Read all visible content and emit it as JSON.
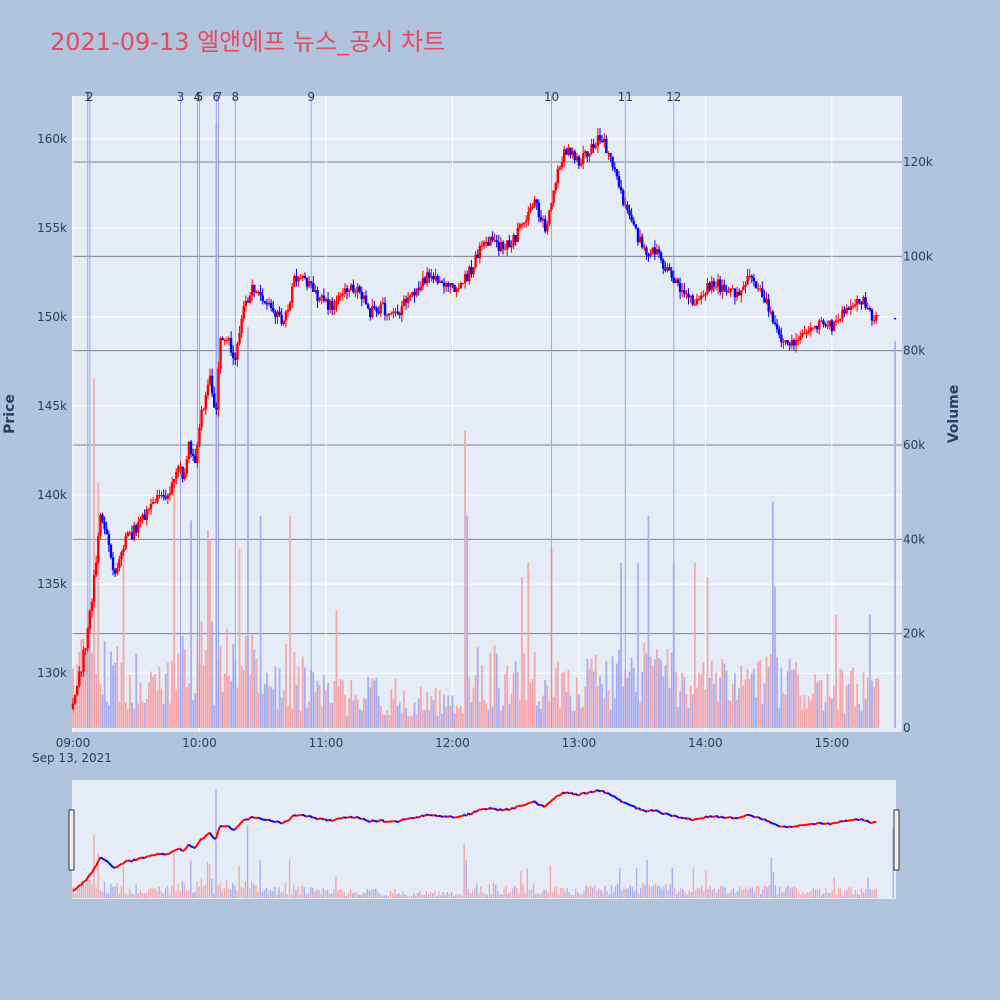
{
  "chart_data": {
    "type": "candlestick",
    "title": "2021-09-13 엘앤에프 뉴스_공시 차트",
    "date_label": "Sep 13, 2021",
    "yaxis_label": "Price",
    "y2axis_label": "Volume",
    "x_ticks": [
      "09:00",
      "10:00",
      "11:00",
      "12:00",
      "13:00",
      "14:00",
      "15:00"
    ],
    "y_ticks": [
      "130k",
      "135k",
      "140k",
      "145k",
      "150k",
      "155k",
      "160k"
    ],
    "y2_ticks": [
      "0",
      "20k",
      "40k",
      "60k",
      "80k",
      "100k",
      "120k"
    ],
    "y_range": [
      126700,
      162400
    ],
    "y2_range": [
      0,
      134000
    ],
    "x_range": [
      "09:00",
      "15:32"
    ],
    "grid": true,
    "legend": "none",
    "colors": {
      "up": "#ff0000",
      "down": "#0000ff",
      "up_volume": "#f4a8ac",
      "down_volume": "#a8aef4",
      "annotation_line": "#9aa6ee",
      "title": "#e64a5c"
    },
    "annotations": [
      {
        "label": "1",
        "time": "09:07"
      },
      {
        "label": "2",
        "time": "09:08"
      },
      {
        "label": "3",
        "time": "09:51"
      },
      {
        "label": "4",
        "time": "09:59"
      },
      {
        "label": "5",
        "time": "10:00"
      },
      {
        "label": "6",
        "time": "10:08"
      },
      {
        "label": "7",
        "time": "10:09"
      },
      {
        "label": "8",
        "time": "10:17"
      },
      {
        "label": "9",
        "time": "10:53"
      },
      {
        "label": "10",
        "time": "12:47"
      },
      {
        "label": "11",
        "time": "13:22"
      },
      {
        "label": "12",
        "time": "13:45"
      }
    ],
    "price_anchors": [
      [
        "09:00",
        128500
      ],
      [
        "09:03",
        129800
      ],
      [
        "09:05",
        131000
      ],
      [
        "09:08",
        133200
      ],
      [
        "09:11",
        136500
      ],
      [
        "09:13",
        139000
      ],
      [
        "09:16",
        137500
      ],
      [
        "09:20",
        135500
      ],
      [
        "09:25",
        137500
      ],
      [
        "09:31",
        138200
      ],
      [
        "09:37",
        139500
      ],
      [
        "09:45",
        140000
      ],
      [
        "09:50",
        141500
      ],
      [
        "09:53",
        141000
      ],
      [
        "09:55",
        143000
      ],
      [
        "09:58",
        141500
      ],
      [
        "10:01",
        144500
      ],
      [
        "10:05",
        146500
      ],
      [
        "10:08",
        144500
      ],
      [
        "10:10",
        149000
      ],
      [
        "10:14",
        148500
      ],
      [
        "10:17",
        147500
      ],
      [
        "10:20",
        150000
      ],
      [
        "10:25",
        151500
      ],
      [
        "10:30",
        151000
      ],
      [
        "10:35",
        150500
      ],
      [
        "10:40",
        149500
      ],
      [
        "10:45",
        152000
      ],
      [
        "10:52",
        152000
      ],
      [
        "10:57",
        151000
      ],
      [
        "11:03",
        150500
      ],
      [
        "11:10",
        151500
      ],
      [
        "11:16",
        151500
      ],
      [
        "11:20",
        150300
      ],
      [
        "11:27",
        150500
      ],
      [
        "11:32",
        150000
      ],
      [
        "11:38",
        150800
      ],
      [
        "11:45",
        151800
      ],
      [
        "11:50",
        152500
      ],
      [
        "11:55",
        152000
      ],
      [
        "12:00",
        151500
      ],
      [
        "12:04",
        151800
      ],
      [
        "12:08",
        152500
      ],
      [
        "12:12",
        153500
      ],
      [
        "12:17",
        154200
      ],
      [
        "12:22",
        153800
      ],
      [
        "12:30",
        154500
      ],
      [
        "12:35",
        155500
      ],
      [
        "12:39",
        156500
      ],
      [
        "12:44",
        155000
      ],
      [
        "12:48",
        157000
      ],
      [
        "12:52",
        159000
      ],
      [
        "12:57",
        159500
      ],
      [
        "13:00",
        158500
      ],
      [
        "13:05",
        159500
      ],
      [
        "13:10",
        160000
      ],
      [
        "13:13",
        159500
      ],
      [
        "13:17",
        158500
      ],
      [
        "13:20",
        157000
      ],
      [
        "13:24",
        155500
      ],
      [
        "13:28",
        154500
      ],
      [
        "13:32",
        153500
      ],
      [
        "13:36",
        153800
      ],
      [
        "13:40",
        153000
      ],
      [
        "13:45",
        152000
      ],
      [
        "13:50",
        151000
      ],
      [
        "13:55",
        150800
      ],
      [
        "14:00",
        151500
      ],
      [
        "14:05",
        151800
      ],
      [
        "14:10",
        151600
      ],
      [
        "14:15",
        151200
      ],
      [
        "14:20",
        152000
      ],
      [
        "14:25",
        151800
      ],
      [
        "14:30",
        150500
      ],
      [
        "14:35",
        149000
      ],
      [
        "14:40",
        148500
      ],
      [
        "14:45",
        148700
      ],
      [
        "14:50",
        149500
      ],
      [
        "14:55",
        149800
      ],
      [
        "15:00",
        149500
      ],
      [
        "15:05",
        150200
      ],
      [
        "15:10",
        150600
      ],
      [
        "15:15",
        151000
      ],
      [
        "15:20",
        149800
      ],
      [
        "15:22",
        150000
      ]
    ],
    "last_price": {
      "time": "15:30",
      "price": 149900
    },
    "volume_spikes": [
      {
        "time": "09:10",
        "volume": 74000
      },
      {
        "time": "09:12",
        "volume": 52000
      },
      {
        "time": "09:24",
        "volume": 37000
      },
      {
        "time": "09:48",
        "volume": 52000
      },
      {
        "time": "09:56",
        "volume": 44000
      },
      {
        "time": "10:04",
        "volume": 42000
      },
      {
        "time": "10:05",
        "volume": 40000
      },
      {
        "time": "10:08",
        "volume": 128000
      },
      {
        "time": "10:19",
        "volume": 38000
      },
      {
        "time": "10:23",
        "volume": 85000
      },
      {
        "time": "10:29",
        "volume": 45000
      },
      {
        "time": "10:43",
        "volume": 45000
      },
      {
        "time": "11:05",
        "volume": 25000
      },
      {
        "time": "12:06",
        "volume": 63000
      },
      {
        "time": "12:07",
        "volume": 45000
      },
      {
        "time": "12:33",
        "volume": 32000
      },
      {
        "time": "12:36",
        "volume": 35000
      },
      {
        "time": "12:47",
        "volume": 38000
      },
      {
        "time": "13:20",
        "volume": 35000
      },
      {
        "time": "13:28",
        "volume": 35000
      },
      {
        "time": "13:33",
        "volume": 45000
      },
      {
        "time": "13:45",
        "volume": 35000
      },
      {
        "time": "13:55",
        "volume": 35000
      },
      {
        "time": "14:01",
        "volume": 32000
      },
      {
        "time": "14:32",
        "volume": 48000
      },
      {
        "time": "14:33",
        "volume": 30000
      },
      {
        "time": "15:02",
        "volume": 24000
      },
      {
        "time": "15:18",
        "volume": 24000
      },
      {
        "time": "15:30",
        "volume": 82000
      }
    ],
    "volume_profile": [
      [
        "09:00",
        10000
      ],
      [
        "09:10",
        18000
      ],
      [
        "09:20",
        12000
      ],
      [
        "09:40",
        9000
      ],
      [
        "10:00",
        14000
      ],
      [
        "10:20",
        13000
      ],
      [
        "10:40",
        11000
      ],
      [
        "11:00",
        7000
      ],
      [
        "11:40",
        6500
      ],
      [
        "12:00",
        4500
      ],
      [
        "12:10",
        11000
      ],
      [
        "12:40",
        10000
      ],
      [
        "13:00",
        9000
      ],
      [
        "13:30",
        12000
      ],
      [
        "14:00",
        8500
      ],
      [
        "14:30",
        10000
      ],
      [
        "15:00",
        7500
      ],
      [
        "15:20",
        8000
      ]
    ]
  }
}
